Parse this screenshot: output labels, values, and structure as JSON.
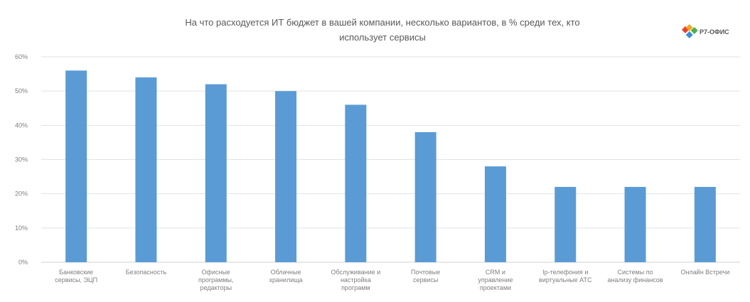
{
  "logo": {
    "text": "Р7-ОФИС"
  },
  "chart_data": {
    "type": "bar",
    "title_lines": [
      "На что расходуется ИТ бюджет в вашей компании, несколько вариантов, в % среди тех, кто",
      "использует сервисы"
    ],
    "xlabel": "",
    "ylabel": "",
    "ylim": [
      0,
      60
    ],
    "yticks": [
      0,
      10,
      20,
      30,
      40,
      50,
      60
    ],
    "ytick_labels": [
      "0%",
      "10%",
      "20%",
      "30%",
      "40%",
      "50%",
      "60%"
    ],
    "grid": true,
    "legend": "none",
    "categories": [
      "Банковские сервисы, ЭЦП",
      "Безопасность",
      "Офисные программы, редакторы",
      "Облачные хранилища",
      "Обслуживание и настройка программ",
      "Почтовые сервисы",
      "CRM и управление проектами",
      "Ip-телефония и виртуальные АТС",
      "Системы по анализу финансов",
      "Онлайн Встречи"
    ],
    "category_label_lines": [
      [
        "Банковские",
        "сервисы, ЭЦП"
      ],
      [
        "Безопасность"
      ],
      [
        "Офисные",
        "программы,",
        "редакторы"
      ],
      [
        "Облачные",
        "хранилища"
      ],
      [
        "Обслуживание и",
        "настройка",
        "программ"
      ],
      [
        "Почтовые",
        "сервисы"
      ],
      [
        "CRM и",
        "управление",
        "проектами"
      ],
      [
        "Ip-телефония и",
        "виртуальные АТС"
      ],
      [
        "Системы по",
        "анализу финансов"
      ],
      [
        "Онлайн Встречи"
      ]
    ],
    "values": [
      56,
      54,
      52,
      50,
      46,
      38,
      28,
      22,
      22,
      22
    ],
    "colors": {
      "bar": "#5b9bd5",
      "grid": "#e3e3e3",
      "text": "#7f7f7f"
    }
  }
}
